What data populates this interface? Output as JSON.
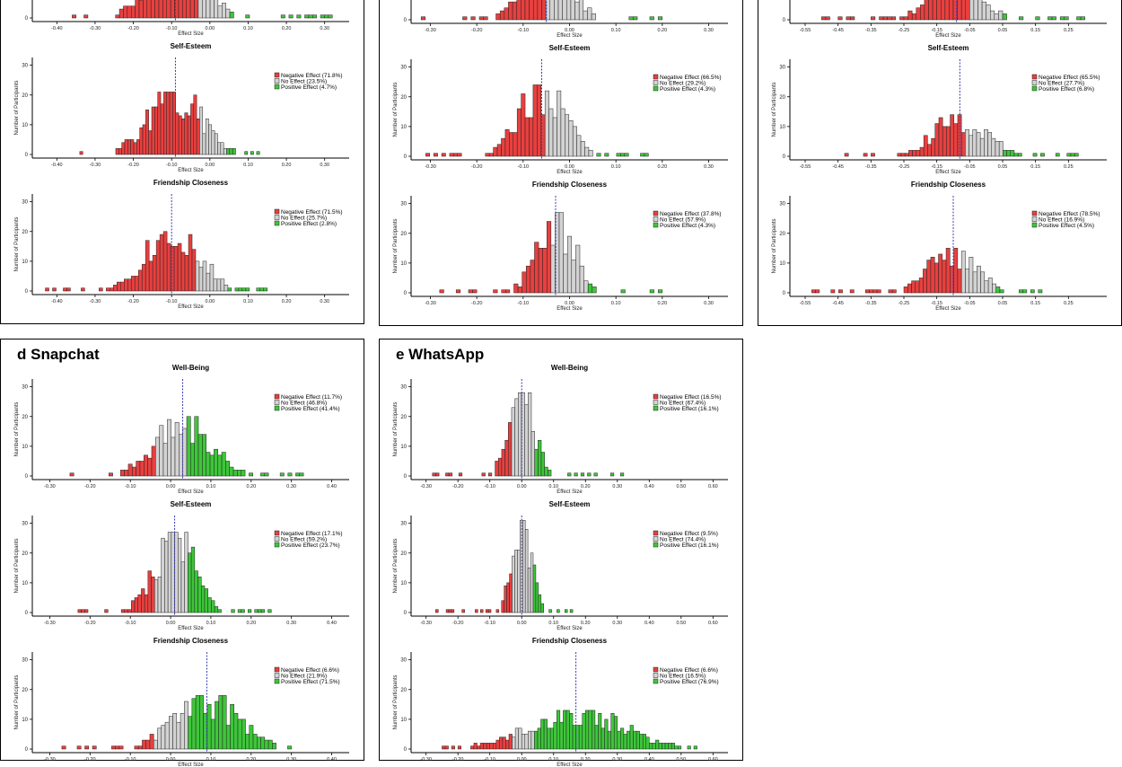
{
  "colors": {
    "negative": "#e8403f",
    "neutral": "#d3d3d3",
    "positive": "#3ec63a",
    "median": "#3b3bb3",
    "axis": "#000000"
  },
  "panels": [
    {
      "id": "a",
      "title": "",
      "charts": [
        {
          "title": "",
          "xlabel": "Effect Size",
          "ylabel": "Number of Participants",
          "xlim": [
            -0.45,
            0.35
          ],
          "xticks": [
            -0.4,
            -0.3,
            -0.2,
            -0.1,
            0.0,
            0.1,
            0.2,
            0.3
          ],
          "xtick_labels": [
            "-0.40",
            "-0.30",
            "-0.20",
            "-0.10",
            "0.00",
            "0.10",
            "0.20",
            "0.30"
          ],
          "ylim": [
            0,
            32
          ],
          "yticks": [
            0
          ],
          "neg_upper": -0.03,
          "pos_lower": 0.05,
          "median": -0.09,
          "peak": 21,
          "sd": 0.07,
          "x_min": -0.36,
          "x_max": 0.32,
          "bins": 66,
          "legend": []
        },
        {
          "title": "Self-Esteem",
          "xlabel": "Effect Size",
          "ylabel": "Number of Participants",
          "xlim": [
            -0.45,
            0.35
          ],
          "xticks": [
            -0.4,
            -0.3,
            -0.2,
            -0.1,
            0.0,
            0.1,
            0.2,
            0.3
          ],
          "xtick_labels": [
            "-0.40",
            "-0.30",
            "-0.20",
            "-0.10",
            "0.00",
            "0.10",
            "0.20",
            "0.30"
          ],
          "ylim": [
            0,
            32
          ],
          "yticks": [
            0,
            10,
            20,
            30
          ],
          "neg_upper": -0.03,
          "pos_lower": 0.04,
          "median": -0.09,
          "peak": 21,
          "sd": 0.07,
          "x_min": -0.34,
          "x_max": 0.13,
          "bins": 60,
          "legend": [
            "Negative Effect (71.8%)",
            "No Effect (23.5%)",
            "Positive Effect (4.7%)"
          ]
        },
        {
          "title": "Friendship Closeness",
          "xlabel": "Effect Size",
          "ylabel": "Number of Participants",
          "xlim": [
            -0.45,
            0.35
          ],
          "xticks": [
            -0.4,
            -0.3,
            -0.2,
            -0.1,
            0.0,
            0.1,
            0.2,
            0.3
          ],
          "xtick_labels": [
            "-0.40",
            "-0.30",
            "-0.20",
            "-0.10",
            "0.00",
            "0.10",
            "0.20",
            "0.30"
          ],
          "ylim": [
            0,
            32
          ],
          "yticks": [
            0,
            10,
            20,
            30
          ],
          "neg_upper": -0.04,
          "pos_lower": 0.05,
          "median": -0.1,
          "peak": 22,
          "sd": 0.07,
          "x_min": -0.43,
          "x_max": 0.15,
          "bins": 62,
          "legend": [
            "Negative Effect (71.5%)",
            "No Effect (25.7%)",
            "Positive Effect (2.8%)"
          ]
        }
      ]
    },
    {
      "id": "b",
      "title": "",
      "charts": [
        {
          "title": "",
          "xlabel": "Effect Size",
          "ylabel": "Number of Participants",
          "xlim": [
            -0.33,
            0.33
          ],
          "xticks": [
            -0.3,
            -0.2,
            -0.1,
            0.0,
            0.1,
            0.2,
            0.3
          ],
          "xtick_labels": [
            "-0.30",
            "-0.20",
            "-0.10",
            "0.00",
            "0.10",
            "0.20",
            "0.30"
          ],
          "ylim": [
            0,
            32
          ],
          "yticks": [
            0
          ],
          "neg_upper": -0.05,
          "pos_lower": 0.07,
          "median": -0.05,
          "peak": 19,
          "sd": 0.05,
          "x_min": -0.32,
          "x_max": 0.2,
          "bins": 58,
          "legend": []
        },
        {
          "title": "Self-Esteem",
          "xlabel": "Effect Size",
          "ylabel": "Number of Participants",
          "xlim": [
            -0.33,
            0.33
          ],
          "xticks": [
            -0.3,
            -0.2,
            -0.1,
            0.0,
            0.1,
            0.2,
            0.3
          ],
          "xtick_labels": [
            "-0.30",
            "-0.20",
            "-0.10",
            "0.00",
            "0.10",
            "0.20",
            "0.30"
          ],
          "ylim": [
            0,
            32
          ],
          "yticks": [
            0,
            10,
            20,
            30
          ],
          "neg_upper": -0.05,
          "pos_lower": 0.05,
          "median": -0.06,
          "peak": 24,
          "sd": 0.05,
          "x_min": -0.31,
          "x_max": 0.17,
          "bins": 56,
          "legend": [
            "Negative Effect (66.5%)",
            "No Effect (29.2%)",
            "Positive Effect (4.3%)"
          ]
        },
        {
          "title": "Friendship Closeness",
          "xlabel": "Effect Size",
          "ylabel": "Number of Participants",
          "xlim": [
            -0.33,
            0.33
          ],
          "xticks": [
            -0.3,
            -0.2,
            -0.1,
            0.0,
            0.1,
            0.2,
            0.3
          ],
          "xtick_labels": [
            "-0.30",
            "-0.20",
            "-0.10",
            "0.00",
            "0.10",
            "0.20",
            "0.30"
          ],
          "ylim": [
            0,
            32
          ],
          "yticks": [
            0,
            10,
            20,
            30
          ],
          "neg_upper": -0.04,
          "pos_lower": 0.04,
          "median": -0.03,
          "peak": 27,
          "sd": 0.04,
          "x_min": -0.28,
          "x_max": 0.2,
          "bins": 54,
          "legend": [
            "Negative Effect (37.8%)",
            "No Effect (57.9%)",
            "Positive Effect (4.3%)"
          ]
        }
      ]
    },
    {
      "id": "c",
      "title": "",
      "charts": [
        {
          "title": "",
          "xlabel": "Effect Size",
          "ylabel": "Number of Participants",
          "xlim": [
            -0.58,
            0.35
          ],
          "xticks": [
            -0.55,
            -0.45,
            -0.35,
            -0.25,
            -0.15,
            -0.05,
            0.05,
            0.15,
            0.25
          ],
          "xtick_labels": [
            "-0.55",
            "-0.45",
            "-0.35",
            "-0.25",
            "-0.15",
            "-0.05",
            "0.05",
            "0.15",
            "0.25"
          ],
          "ylim": [
            0,
            32
          ],
          "yticks": [
            0
          ],
          "neg_upper": -0.05,
          "pos_lower": 0.05,
          "median": -0.09,
          "peak": 17,
          "sd": 0.07,
          "x_min": -0.5,
          "x_max": 0.3,
          "bins": 64,
          "legend": []
        },
        {
          "title": "Self-Esteem",
          "xlabel": "Effect Size",
          "ylabel": "Number of Participants",
          "xlim": [
            -0.58,
            0.35
          ],
          "xticks": [
            -0.55,
            -0.45,
            -0.35,
            -0.25,
            -0.15,
            -0.05,
            0.05,
            0.15,
            0.25
          ],
          "xtick_labels": [
            "-0.55",
            "-0.45",
            "-0.35",
            "-0.25",
            "-0.15",
            "-0.05",
            "0.05",
            "0.15",
            "0.25"
          ],
          "ylim": [
            0,
            32
          ],
          "yticks": [
            0,
            10,
            20,
            30
          ],
          "neg_upper": -0.06,
          "pos_lower": 0.05,
          "median": -0.08,
          "peak": 14,
          "sd": 0.08,
          "x_min": -0.43,
          "x_max": 0.28,
          "bins": 62,
          "legend": [
            "Negative Effect (65.5%)",
            "No Effect (27.7%)",
            "Positive Effect (6.8%)"
          ]
        },
        {
          "title": "Friendship Closeness",
          "xlabel": "Effect Size",
          "ylabel": "Number of Participants",
          "xlim": [
            -0.58,
            0.35
          ],
          "xticks": [
            -0.55,
            -0.45,
            -0.35,
            -0.25,
            -0.15,
            -0.05,
            0.05,
            0.15,
            0.25
          ],
          "xtick_labels": [
            "-0.55",
            "-0.45",
            "-0.35",
            "-0.25",
            "-0.15",
            "-0.05",
            "0.05",
            "0.15",
            "0.25"
          ],
          "ylim": [
            0,
            32
          ],
          "yticks": [
            0,
            10,
            20,
            30
          ],
          "neg_upper": -0.07,
          "pos_lower": 0.03,
          "median": -0.1,
          "peak": 15,
          "sd": 0.07,
          "x_min": -0.53,
          "x_max": 0.17,
          "bins": 60,
          "legend": [
            "Negative Effect (78.5%)",
            "No Effect (16.9%)",
            "Positive Effect (4.5%)"
          ]
        }
      ]
    },
    {
      "id": "d",
      "title": "d Snapchat",
      "charts": [
        {
          "title": "Well-Being",
          "xlabel": "Effect Size",
          "ylabel": "Number of Participants",
          "xlim": [
            -0.33,
            0.43
          ],
          "xticks": [
            -0.3,
            -0.2,
            -0.1,
            0.0,
            0.1,
            0.2,
            0.3,
            0.4
          ],
          "xtick_labels": [
            "-0.30",
            "-0.20",
            "-0.10",
            "0.00",
            "0.10",
            "0.20",
            "0.30",
            "0.40"
          ],
          "ylim": [
            0,
            32
          ],
          "yticks": [
            0,
            10,
            20,
            30
          ],
          "neg_upper": -0.04,
          "pos_lower": 0.04,
          "median": 0.03,
          "peak": 20,
          "sd": 0.07,
          "x_min": -0.25,
          "x_max": 0.33,
          "bins": 60,
          "legend": [
            "Negative Effect (11.7%)",
            "No Effect (46.8%)",
            "Positive Effect (41.4%)"
          ]
        },
        {
          "title": "Self-Esteem",
          "xlabel": "Effect Size",
          "ylabel": "Number of Participants",
          "xlim": [
            -0.33,
            0.43
          ],
          "xticks": [
            -0.3,
            -0.2,
            -0.1,
            0.0,
            0.1,
            0.2,
            0.3,
            0.4
          ],
          "xtick_labels": [
            "-0.30",
            "-0.20",
            "-0.10",
            "0.00",
            "0.10",
            "0.20",
            "0.30",
            "0.40"
          ],
          "ylim": [
            0,
            32
          ],
          "yticks": [
            0,
            10,
            20,
            30
          ],
          "neg_upper": -0.04,
          "pos_lower": 0.04,
          "median": 0.01,
          "peak": 27,
          "sd": 0.05,
          "x_min": -0.23,
          "x_max": 0.25,
          "bins": 58,
          "legend": [
            "Negative Effect (17.1%)",
            "No Effect (59.2%)",
            "Positive Effect (23.7%)"
          ]
        },
        {
          "title": "Friendship Closeness",
          "xlabel": "Effect Size",
          "ylabel": "Number of Participants",
          "xlim": [
            -0.33,
            0.43
          ],
          "xticks": [
            -0.3,
            -0.2,
            -0.1,
            0.0,
            0.1,
            0.2,
            0.3,
            0.4
          ],
          "xtick_labels": [
            "-0.30",
            "-0.20",
            "-0.10",
            "0.00",
            "0.10",
            "0.20",
            "0.30",
            "0.40"
          ],
          "ylim": [
            0,
            32
          ],
          "yticks": [
            0,
            10,
            20,
            30
          ],
          "neg_upper": -0.04,
          "pos_lower": 0.04,
          "median": 0.09,
          "peak": 18,
          "sd": 0.08,
          "x_min": -0.27,
          "x_max": 0.3,
          "bins": 60,
          "legend": [
            "Negative Effect (6.6%)",
            "No Effect (21.9%)",
            "Positive Effect (71.5%)"
          ]
        }
      ]
    },
    {
      "id": "e",
      "title": "e WhatsApp",
      "charts": [
        {
          "title": "Well-Being",
          "xlabel": "Effect Size",
          "ylabel": "Number of Participants",
          "xlim": [
            -0.33,
            0.63
          ],
          "xticks": [
            -0.3,
            -0.2,
            -0.1,
            0.0,
            0.1,
            0.2,
            0.3,
            0.4,
            0.5,
            0.6
          ],
          "xtick_labels": [
            "-0.30",
            "-0.20",
            "-0.10",
            "0.00",
            "0.10",
            "0.20",
            "0.30",
            "0.40",
            "0.50",
            "0.60"
          ],
          "ylim": [
            0,
            32
          ],
          "yticks": [
            0,
            10,
            20,
            30
          ],
          "neg_upper": -0.03,
          "pos_lower": 0.04,
          "median": 0.0,
          "peak": 28,
          "sd": 0.04,
          "x_min": -0.28,
          "x_max": 0.32,
          "bins": 58,
          "legend": [
            "Negative Effect (16.5%)",
            "No Effect (67.4%)",
            "Positive Effect (16.1%)"
          ]
        },
        {
          "title": "Self-Esteem",
          "xlabel": "Effect Size",
          "ylabel": "Number of Participants",
          "xlim": [
            -0.33,
            0.63
          ],
          "xticks": [
            -0.3,
            -0.2,
            -0.1,
            0.0,
            0.1,
            0.2,
            0.3,
            0.4,
            0.5,
            0.6
          ],
          "xtick_labels": [
            "-0.30",
            "-0.20",
            "-0.10",
            "0.00",
            "0.10",
            "0.20",
            "0.30",
            "0.40",
            "0.50",
            "0.60"
          ],
          "ylim": [
            0,
            32
          ],
          "yticks": [
            0,
            10,
            20,
            30
          ],
          "neg_upper": -0.03,
          "pos_lower": 0.04,
          "median": 0.0,
          "peak": 31,
          "sd": 0.03,
          "x_min": -0.27,
          "x_max": 0.16,
          "bins": 52,
          "legend": [
            "Negative Effect (9.5%)",
            "No Effect (74.4%)",
            "Positive Effect (16.1%)"
          ]
        },
        {
          "title": "Friendship Closeness",
          "xlabel": "Effect Size",
          "ylabel": "Number of Participants",
          "xlim": [
            -0.33,
            0.63
          ],
          "xticks": [
            -0.3,
            -0.2,
            -0.1,
            0.0,
            0.1,
            0.2,
            0.3,
            0.4,
            0.5,
            0.6
          ],
          "xtick_labels": [
            "-0.30",
            "-0.20",
            "-0.10",
            "0.00",
            "0.10",
            "0.20",
            "0.30",
            "0.40",
            "0.50",
            "0.60"
          ],
          "ylim": [
            0,
            32
          ],
          "yticks": [
            0,
            10,
            20,
            30
          ],
          "neg_upper": -0.03,
          "pos_lower": 0.04,
          "median": 0.17,
          "peak": 13,
          "sd": 0.15,
          "x_min": -0.25,
          "x_max": 0.55,
          "bins": 80,
          "legend": [
            "Negative Effect (6.6%)",
            "No Effect (16.5%)",
            "Positive Effect (76.9%)"
          ]
        }
      ]
    }
  ]
}
